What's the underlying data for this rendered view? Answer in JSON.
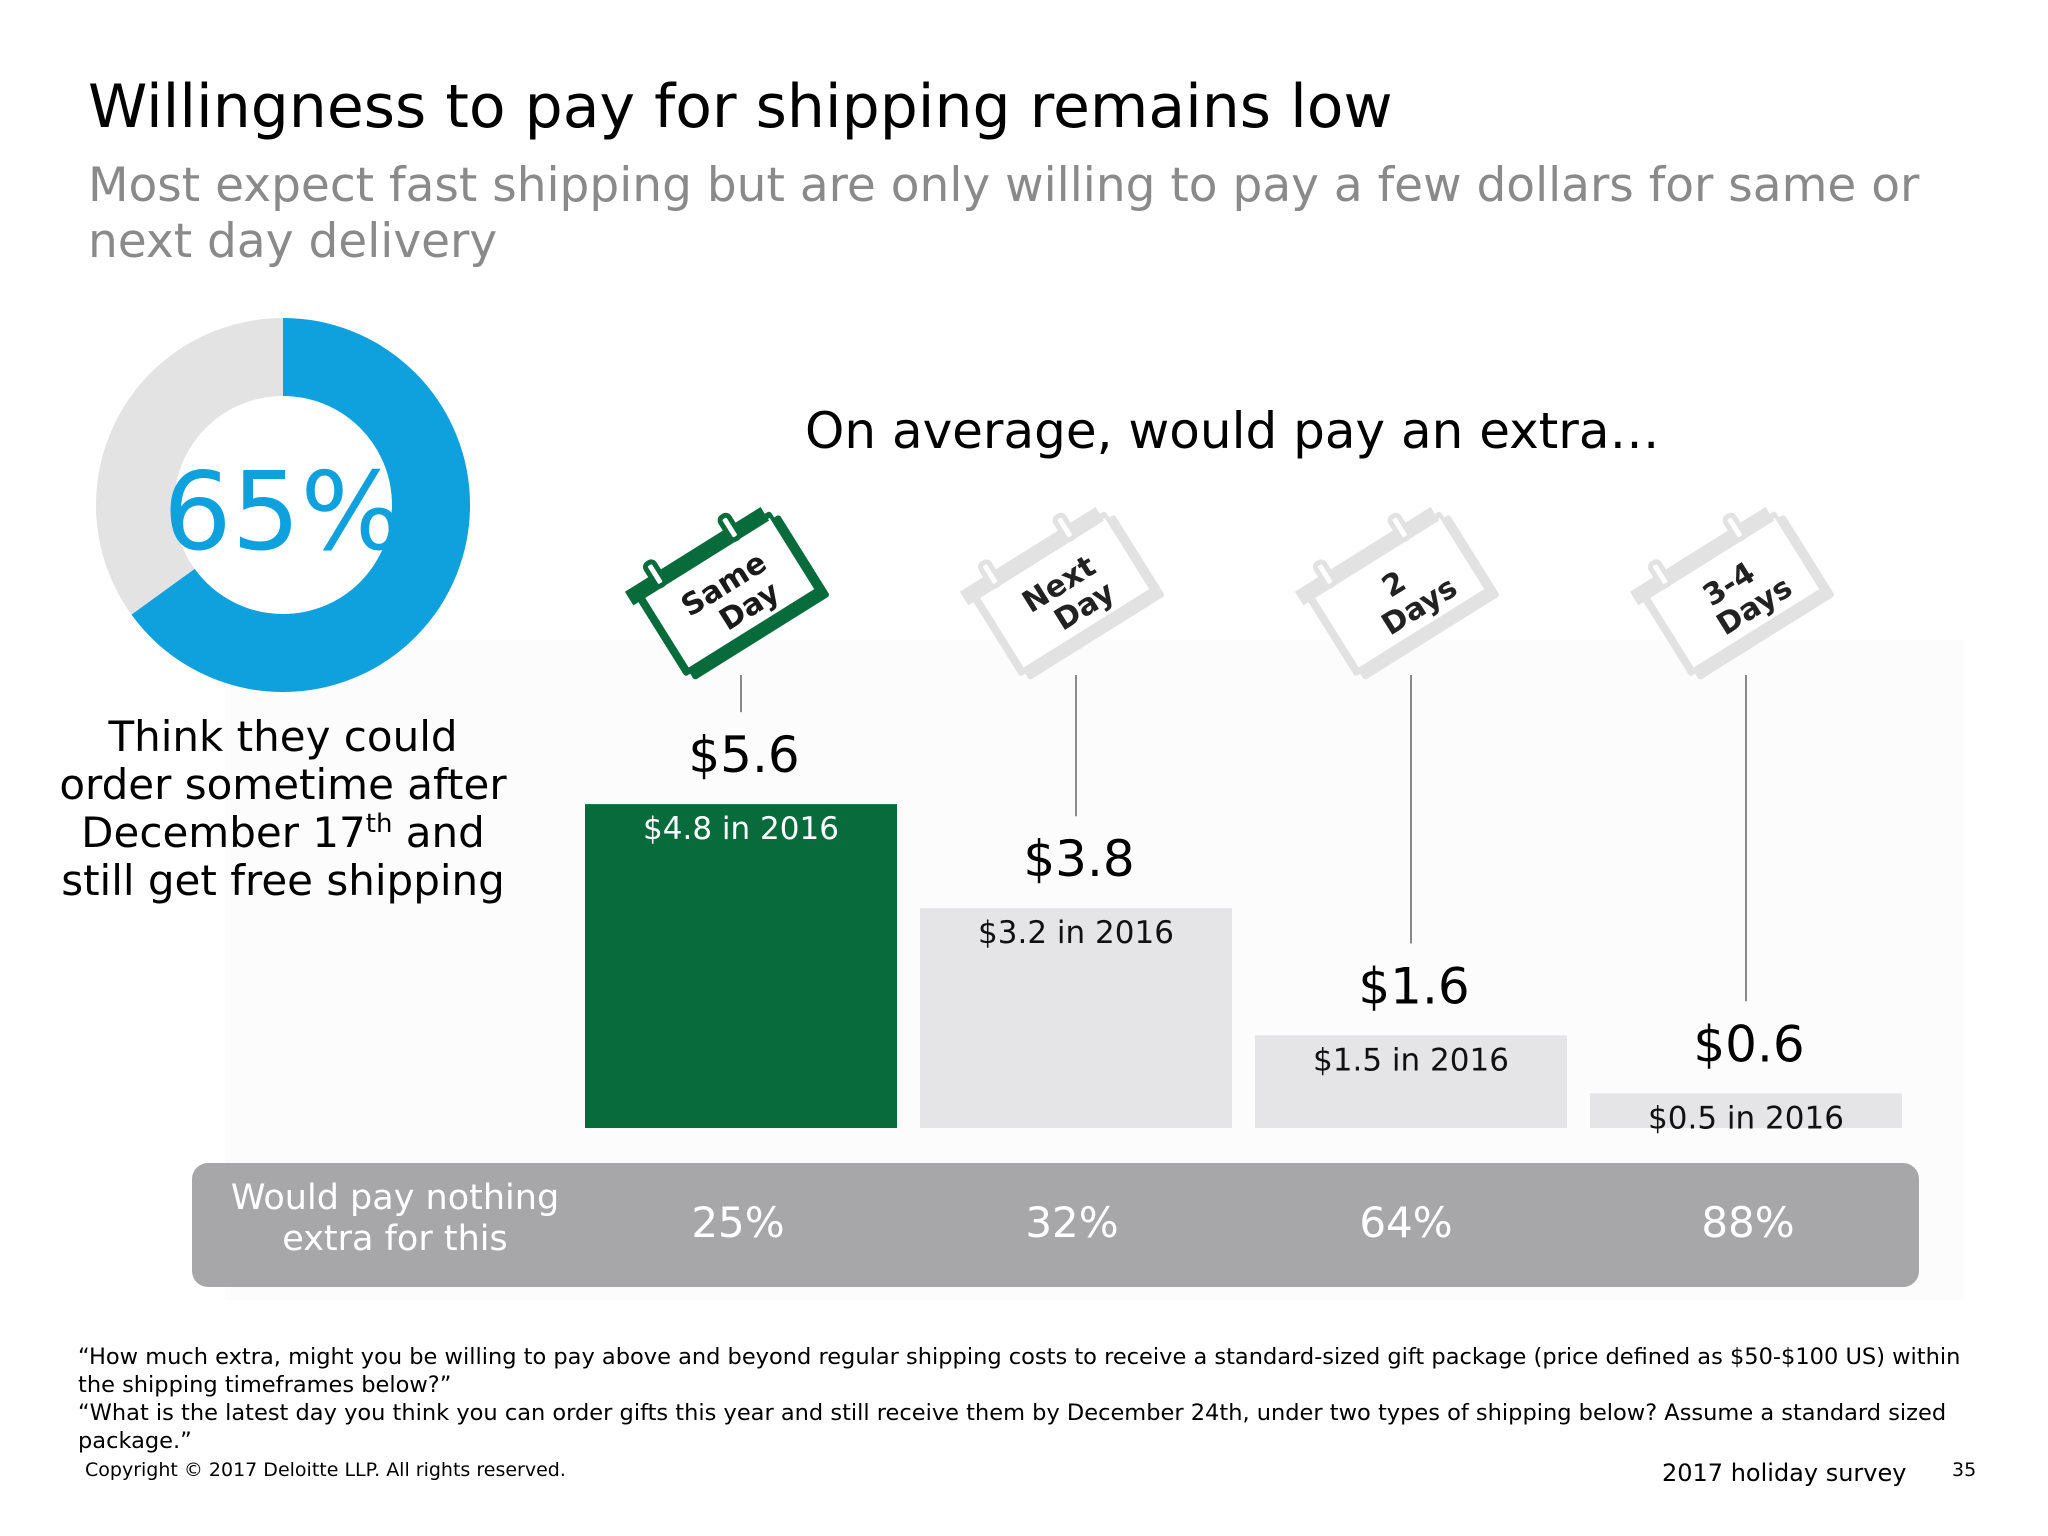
{
  "title": "Willingness to pay for shipping remains low",
  "subtitle": "Most expect fast shipping but are only willing to pay a few dollars for same or next day delivery",
  "donut": {
    "percent_label": "65%",
    "value_fraction": 0.65,
    "caption_line1": "Think they could",
    "caption_line2": "order sometime after",
    "caption_line3a": "December 17",
    "caption_sup": "th",
    "caption_line3b": " and",
    "caption_line4": "still get free shipping",
    "color_value": "#0ea1de",
    "color_rest": "#e3e3e4"
  },
  "chart_heading": "On average, would pay an extra…",
  "chart_data": {
    "type": "bar",
    "categories": [
      "Same Day",
      "Next Day",
      "2 Days",
      "3-4 Days"
    ],
    "icon_labels": [
      [
        "Same",
        "Day"
      ],
      [
        "Next",
        "Day"
      ],
      [
        "2",
        "Days"
      ],
      [
        "3-4",
        "Days"
      ]
    ],
    "values": [
      5.6,
      3.8,
      1.6,
      0.6
    ],
    "value_labels": [
      "$5.6",
      "$3.8",
      "$1.6",
      "$0.6"
    ],
    "prior_labels": [
      "$4.8 in 2016",
      "$3.2 in 2016",
      "$1.5 in 2016",
      "$0.5 in 2016"
    ],
    "ylim": [
      0,
      6
    ],
    "colors": {
      "highlight_bar": "#086b3b",
      "other_bar": "#e5e5e7",
      "highlight_icon": "#086b3b",
      "other_icon": "#e2e2e3",
      "stem": "#8a8a8a"
    },
    "title": "",
    "xlabel": "",
    "ylabel": ""
  },
  "summary": {
    "label_line1": "Would pay nothing",
    "label_line2": "extra for this",
    "values": [
      "25%",
      "32%",
      "64%",
      "88%"
    ],
    "color": "#a7a6a9"
  },
  "footnote": {
    "line1": "“How much extra, might you be willing to pay above and beyond regular shipping costs to receive a standard-sized gift package (price defined as $50-$100 US) within",
    "line2": "the shipping timeframes below?”",
    "line3": "“What is the latest day you think you can order gifts this year and still receive them by December 24th, under two types of shipping below? Assume a standard sized",
    "line4": "package.”"
  },
  "copyright": "Copyright © 2017 Deloitte LLP. All rights reserved.",
  "survey_label": "2017 holiday survey",
  "page_number": "35"
}
